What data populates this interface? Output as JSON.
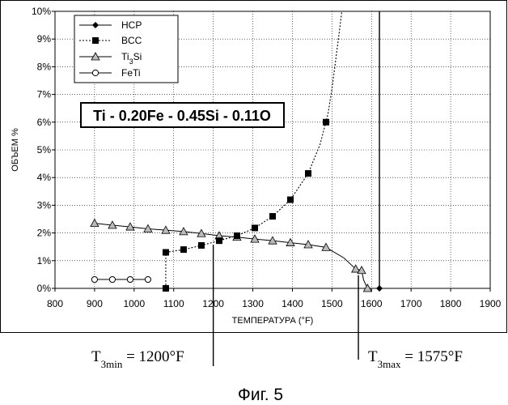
{
  "chart_data": {
    "type": "line",
    "title": "Ti - 0.20Fe - 0.45Si - 0.11O",
    "xlabel": "ТЕМПЕРАТУРА (°F)",
    "ylabel": "ОБЪЕМ %",
    "xlim": [
      800,
      1900
    ],
    "ylim": [
      0,
      10
    ],
    "x_ticks": [
      "800",
      "900",
      "1000",
      "1100",
      "1200",
      "1300",
      "1400",
      "1500",
      "1600",
      "1700",
      "1800",
      "1900"
    ],
    "y_ticks": [
      "0%",
      "1%",
      "2%",
      "3%",
      "4%",
      "5%",
      "6%",
      "7%",
      "8%",
      "9%",
      "10%"
    ],
    "grid": true,
    "legend_position": "top-left",
    "series": [
      {
        "name": "HCP",
        "marker": "diamond",
        "line": "solid",
        "x": [
          1620
        ],
        "y": [
          0
        ]
      },
      {
        "name": "BCC",
        "marker": "square",
        "line": "dotted",
        "x": [
          1080,
          1080,
          1125,
          1170,
          1215,
          1260,
          1305,
          1350,
          1395,
          1440,
          1485
        ],
        "y": [
          0,
          1.3,
          1.4,
          1.55,
          1.72,
          1.9,
          2.18,
          2.6,
          3.2,
          4.15,
          6.0
        ]
      },
      {
        "name": "Ti3Si",
        "name_main": "Ti",
        "name_sub": "3",
        "name_tail": "Si",
        "marker": "triangle",
        "line": "solid",
        "x": [
          900,
          945,
          990,
          1035,
          1080,
          1125,
          1170,
          1215,
          1260,
          1305,
          1350,
          1395,
          1440,
          1485,
          1560,
          1575,
          1590
        ],
        "y": [
          2.35,
          2.28,
          2.22,
          2.15,
          2.1,
          2.05,
          1.98,
          1.9,
          1.85,
          1.78,
          1.72,
          1.65,
          1.58,
          1.48,
          0.7,
          0.65,
          0
        ]
      },
      {
        "name": "FeTi",
        "marker": "circle",
        "line": "solid",
        "x": [
          900,
          945,
          990,
          1035,
          1080
        ],
        "y": [
          0.32,
          0.32,
          0.32,
          0.32,
          0
        ]
      }
    ],
    "bcc_curve": {
      "x": [
        1080,
        1125,
        1170,
        1215,
        1260,
        1305,
        1350,
        1395,
        1440,
        1470,
        1490,
        1500,
        1510,
        1518,
        1525
      ],
      "y": [
        1.3,
        1.4,
        1.55,
        1.72,
        1.9,
        2.18,
        2.6,
        3.2,
        4.15,
        5.2,
        6.3,
        7.2,
        8.3,
        9.2,
        10
      ]
    },
    "ti3si_tail": {
      "x": [
        1485,
        1530,
        1560,
        1575,
        1580,
        1590
      ],
      "y": [
        1.48,
        1.1,
        0.7,
        0.65,
        0.3,
        0
      ]
    },
    "vertical_line_x": 1620,
    "annotations": [
      {
        "id": "tmin",
        "text_main": "T",
        "text_sub": "3min",
        "text_tail": " = 1200°F",
        "x": 1200
      },
      {
        "id": "tmax",
        "text_main": "T",
        "text_sub": "3max",
        "text_tail": " = 1575°F",
        "x": 1575
      }
    ]
  },
  "caption": "Фиг. 5"
}
